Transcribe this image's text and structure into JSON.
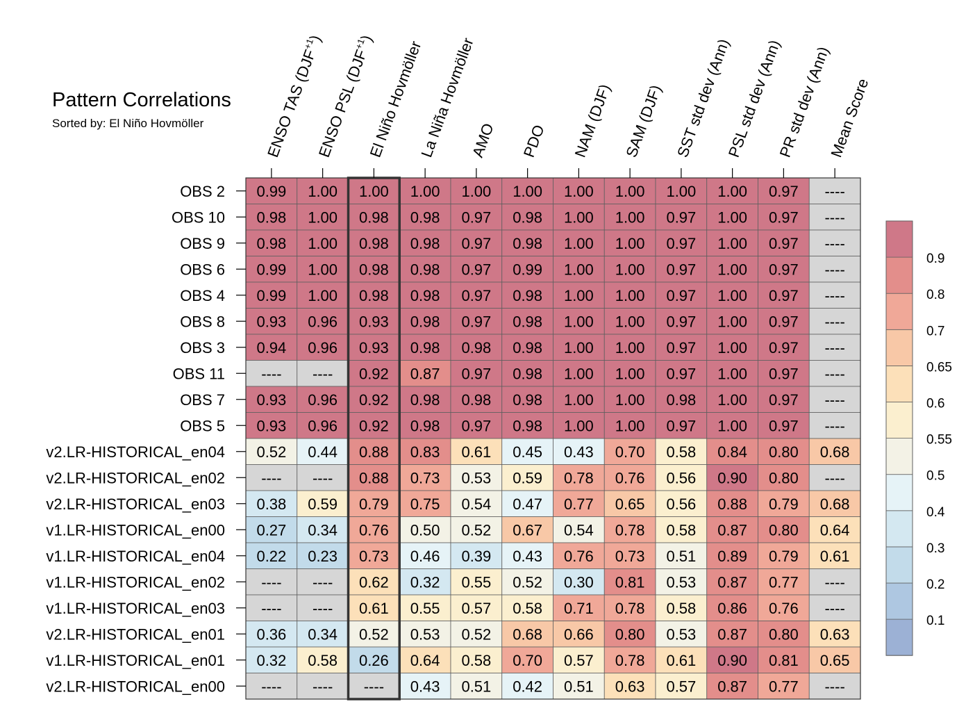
{
  "chart_data": {
    "type": "heatmap",
    "title": "Pattern Correlations",
    "subtitle": "Sorted by: El Niño Hovmöller",
    "highlight_column": "El Niño Hovmöller",
    "columns": [
      "ENSO TAS (DJF+1)",
      "ENSO PSL (DJF+1)",
      "El Niño Hovmöller",
      "La Niña Hovmöller",
      "AMO",
      "PDO",
      "NAM (DJF)",
      "SAM (DJF)",
      "SST std dev (Ann)",
      "PSL std dev (Ann)",
      "PR std dev (Ann)",
      "Mean Score"
    ],
    "rows": [
      "OBS 2",
      "OBS 10",
      "OBS 9",
      "OBS 6",
      "OBS 4",
      "OBS 8",
      "OBS 3",
      "OBS 11",
      "OBS 7",
      "OBS 5",
      "v2.LR-HISTORICAL_en04",
      "v2.LR-HISTORICAL_en02",
      "v2.LR-HISTORICAL_en03",
      "v1.LR-HISTORICAL_en00",
      "v1.LR-HISTORICAL_en04",
      "v1.LR-HISTORICAL_en02",
      "v1.LR-HISTORICAL_en03",
      "v2.LR-HISTORICAL_en01",
      "v1.LR-HISTORICAL_en01",
      "v2.LR-HISTORICAL_en00"
    ],
    "values": [
      [
        0.99,
        1.0,
        1.0,
        1.0,
        1.0,
        1.0,
        1.0,
        1.0,
        1.0,
        1.0,
        0.97,
        null
      ],
      [
        0.98,
        1.0,
        0.98,
        0.98,
        0.97,
        0.98,
        1.0,
        1.0,
        0.97,
        1.0,
        0.97,
        null
      ],
      [
        0.98,
        1.0,
        0.98,
        0.98,
        0.97,
        0.98,
        1.0,
        1.0,
        0.97,
        1.0,
        0.97,
        null
      ],
      [
        0.99,
        1.0,
        0.98,
        0.98,
        0.97,
        0.99,
        1.0,
        1.0,
        0.97,
        1.0,
        0.97,
        null
      ],
      [
        0.99,
        1.0,
        0.98,
        0.98,
        0.97,
        0.98,
        1.0,
        1.0,
        0.97,
        1.0,
        0.97,
        null
      ],
      [
        0.93,
        0.96,
        0.93,
        0.98,
        0.97,
        0.98,
        1.0,
        1.0,
        0.97,
        1.0,
        0.97,
        null
      ],
      [
        0.94,
        0.96,
        0.93,
        0.98,
        0.98,
        0.98,
        1.0,
        1.0,
        0.97,
        1.0,
        0.97,
        null
      ],
      [
        null,
        null,
        0.92,
        0.87,
        0.97,
        0.98,
        1.0,
        1.0,
        0.97,
        1.0,
        0.97,
        null
      ],
      [
        0.93,
        0.96,
        0.92,
        0.98,
        0.98,
        0.98,
        1.0,
        1.0,
        0.98,
        1.0,
        0.97,
        null
      ],
      [
        0.93,
        0.96,
        0.92,
        0.98,
        0.97,
        0.98,
        1.0,
        1.0,
        0.97,
        1.0,
        0.97,
        null
      ],
      [
        0.52,
        0.44,
        0.88,
        0.83,
        0.61,
        0.45,
        0.43,
        0.7,
        0.58,
        0.84,
        0.8,
        0.68
      ],
      [
        null,
        null,
        0.88,
        0.73,
        0.53,
        0.59,
        0.78,
        0.76,
        0.56,
        0.9,
        0.8,
        null
      ],
      [
        0.38,
        0.59,
        0.79,
        0.75,
        0.54,
        0.47,
        0.77,
        0.65,
        0.56,
        0.88,
        0.79,
        0.68
      ],
      [
        0.27,
        0.34,
        0.76,
        0.5,
        0.52,
        0.67,
        0.54,
        0.78,
        0.58,
        0.87,
        0.8,
        0.64
      ],
      [
        0.22,
        0.23,
        0.73,
        0.46,
        0.39,
        0.43,
        0.76,
        0.73,
        0.51,
        0.89,
        0.79,
        0.61
      ],
      [
        null,
        null,
        0.62,
        0.32,
        0.55,
        0.52,
        0.3,
        0.81,
        0.53,
        0.87,
        0.77,
        null
      ],
      [
        null,
        null,
        0.61,
        0.55,
        0.57,
        0.58,
        0.71,
        0.78,
        0.58,
        0.86,
        0.76,
        null
      ],
      [
        0.36,
        0.34,
        0.52,
        0.53,
        0.52,
        0.68,
        0.66,
        0.8,
        0.53,
        0.87,
        0.8,
        0.63
      ],
      [
        0.32,
        0.58,
        0.26,
        0.64,
        0.58,
        0.7,
        0.57,
        0.78,
        0.61,
        0.9,
        0.81,
        0.65
      ],
      [
        null,
        null,
        null,
        0.43,
        0.51,
        0.42,
        0.51,
        0.63,
        0.57,
        0.87,
        0.77,
        null
      ]
    ],
    "missing_label": "----",
    "missing_color": "#d6d6d6",
    "colorbar": {
      "levels": [
        0.1,
        0.2,
        0.3,
        0.4,
        0.5,
        0.55,
        0.6,
        0.65,
        0.7,
        0.8,
        0.9
      ],
      "colors": [
        "#9cb1d5",
        "#aec7e1",
        "#c2dbea",
        "#d4e8f1",
        "#e6f3f7",
        "#f3f2e6",
        "#fbefcf",
        "#fce0b9",
        "#f8c8a7",
        "#f0a898",
        "#e38e8b",
        "#cf7888"
      ],
      "position": "right"
    }
  }
}
